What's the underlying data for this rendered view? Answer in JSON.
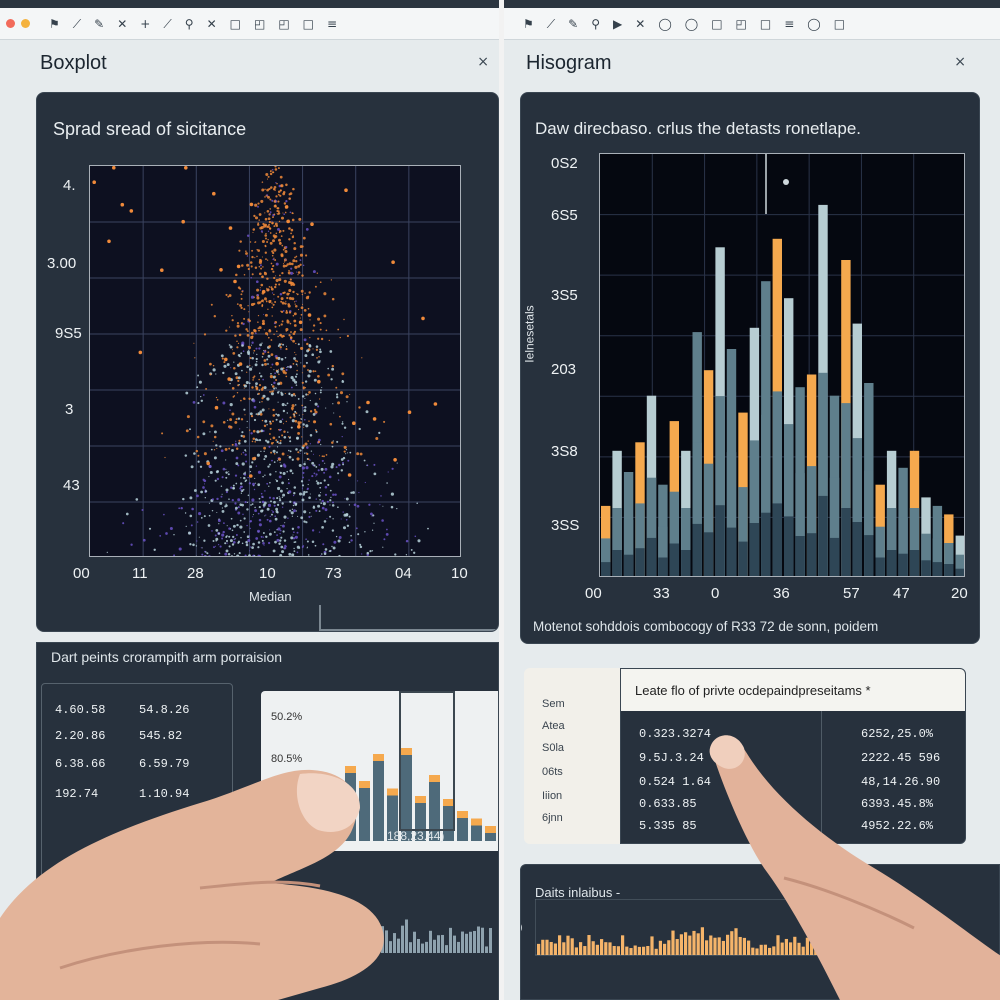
{
  "toolbar": {
    "icons": [
      "flag-icon",
      "diagonal-icon",
      "brush-icon",
      "close-icon",
      "plus-icon",
      "diagonal-icon",
      "pin-icon",
      "cross-icon",
      "square-icon",
      "shapes-icon",
      "shapes-icon",
      "square-icon",
      "list-icon"
    ],
    "right_icons": [
      "flag-icon",
      "diagonal-icon",
      "brush-icon",
      "pin-icon",
      "play-icon",
      "cross-icon",
      "circle-icon",
      "circle-icon",
      "square-icon",
      "shapes-icon",
      "square-icon",
      "list-icon",
      "circle-icon",
      "square-icon"
    ]
  },
  "left_window": {
    "title": "Boxplot",
    "close": "×",
    "plot_panel": {
      "title": "Sprad sread of sicitance",
      "xlabel": "Median",
      "y_ticks": [
        "4.",
        "3.00",
        "9S5",
        "3",
        "43",
        ""
      ],
      "x_ticks": [
        "00",
        "11",
        "28",
        "10",
        "73",
        "04",
        "10"
      ],
      "colors": {
        "warm": "#f08a3a",
        "cool": "#b8d4dc",
        "violet": "#6b52c8"
      }
    },
    "table_panel": {
      "title": "Dart peints crorampith arm porraision",
      "rows": [
        [
          "4.60.58",
          "54.8.26"
        ],
        [
          "2.20.86",
          "545.82"
        ],
        [
          "6.38.66",
          "6.59.79"
        ],
        [
          "192.74",
          "1.10.94"
        ]
      ]
    },
    "mini_chart": {
      "y_ticks": [
        "50.2%",
        "80.5%"
      ],
      "readout": "188,23.44)"
    }
  },
  "right_window": {
    "title": "Hisogram",
    "close": "×",
    "plot_panel": {
      "title": "Daw direcbaso. crlus the detasts ronetlape.",
      "ylabel": "Ielnesetals",
      "y_ticks": [
        "0S2",
        "6S5",
        "3S5",
        "203",
        "3S8",
        "3SS"
      ],
      "x_ticks": [
        "00",
        "33",
        "0",
        "36",
        "57",
        "47",
        "20"
      ],
      "caption": "Motenot sohddois combocogy of R33 72 de sonn, poidem",
      "colors": {
        "orange": "#f5a94e",
        "slate": "#5f7f8c",
        "pale": "#b7cdd2",
        "dark": "#2e4656"
      }
    },
    "list_panel": {
      "title": "Leate flo of privte ocdepaindpreseitams *",
      "side_labels": [
        "Sem",
        "Atea",
        "S0la",
        "06ts",
        "Iiion",
        "6jnn"
      ],
      "left_values": [
        "0.323.3274",
        "9.5J.3.24",
        "0.524 1.64",
        "0.633.85",
        "5.335 85"
      ],
      "right_values": [
        "6252,25.0%",
        "2222.45 596",
        "48,14.26.90",
        "6393.45.8%",
        "4952.22.6%"
      ]
    },
    "bottom_panel": {
      "title": "Daits inlaibus -",
      "axis_tick": "10"
    }
  },
  "chart_data": [
    {
      "type": "scatter",
      "title": "Sprad sread of sicitance",
      "xlabel": "Median",
      "x_tick_labels": [
        "00",
        "11",
        "28",
        "10",
        "73",
        "04",
        "10"
      ],
      "y_tick_labels": [
        "4.",
        "3.00",
        "9S5",
        "3",
        "43"
      ],
      "grid": true,
      "shape": "dense symmetric cloud peaked at the centre, warm at top, cool at base"
    },
    {
      "type": "bar",
      "title": "Daw direcbaso. crlus the detasts ronetlape.",
      "ylabel": "Ielnesetals",
      "x_tick_labels": [
        "00",
        "33",
        "0",
        "36",
        "57",
        "47",
        "20"
      ],
      "y_tick_labels": [
        "0S2",
        "6S5",
        "3S5",
        "203",
        "3S8",
        "3SS"
      ],
      "values": [
        0.17,
        0.3,
        0.25,
        0.32,
        0.43,
        0.22,
        0.37,
        0.3,
        0.58,
        0.49,
        0.78,
        0.54,
        0.39,
        0.59,
        0.7,
        0.8,
        0.66,
        0.45,
        0.48,
        0.88,
        0.43,
        0.75,
        0.6,
        0.46,
        0.22,
        0.3,
        0.26,
        0.3,
        0.19,
        0.17,
        0.15,
        0.1
      ],
      "grid": true
    }
  ]
}
